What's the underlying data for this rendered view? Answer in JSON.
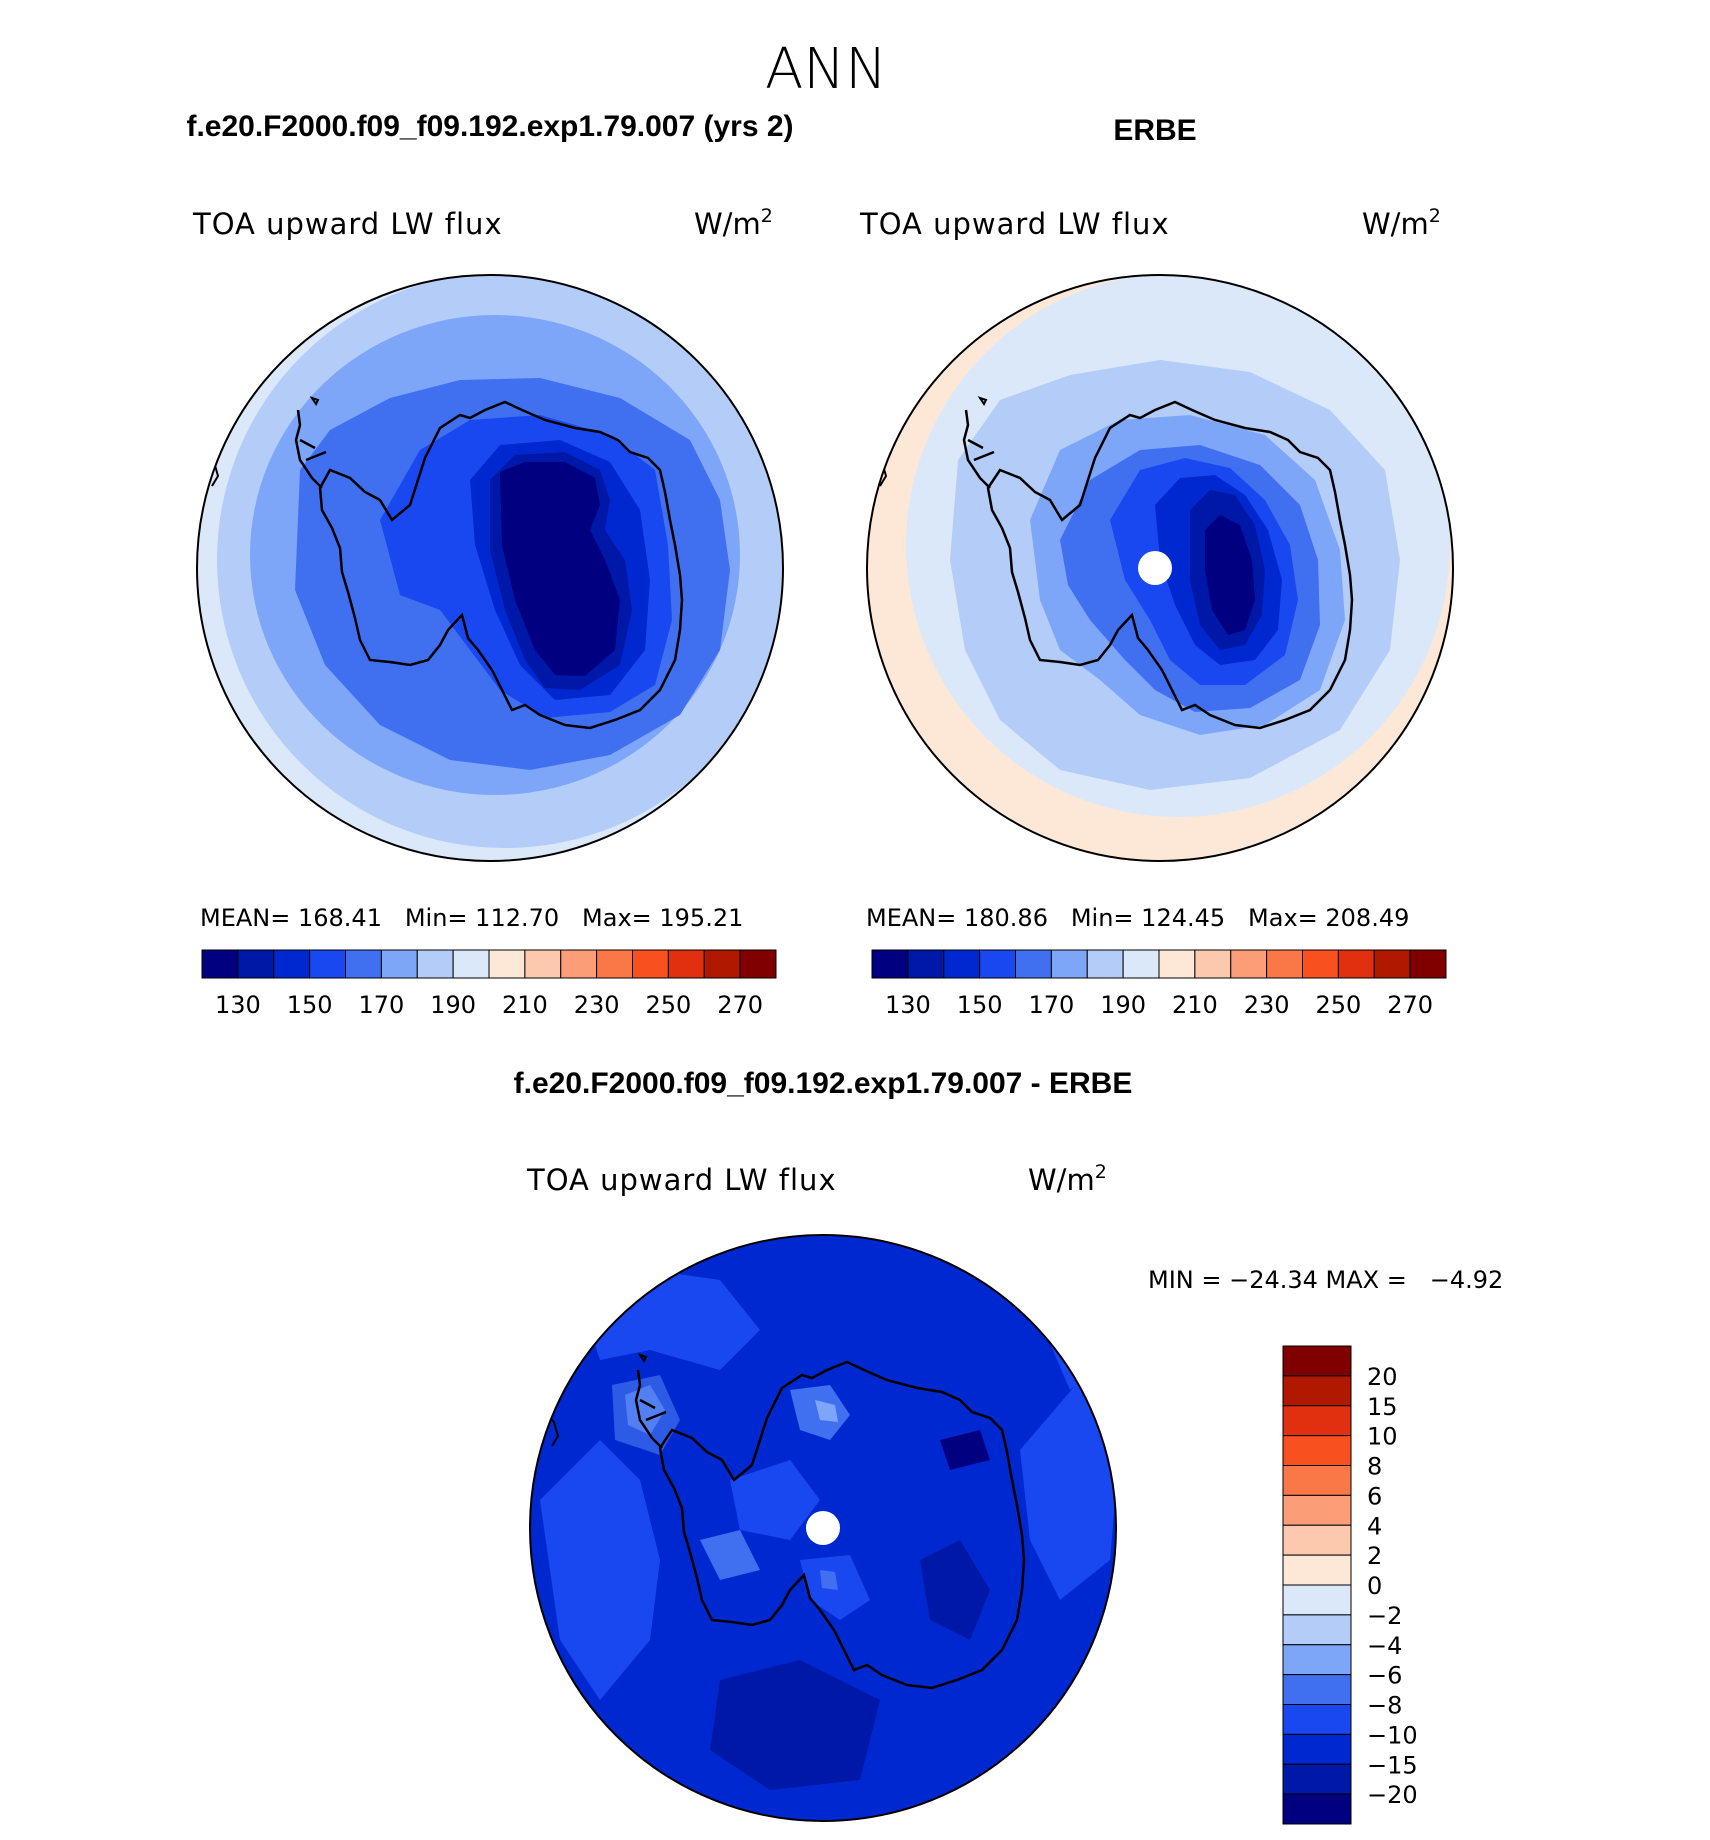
{
  "figure": {
    "title": "ANN",
    "panels": [
      {
        "id": "model",
        "header": "f.e20.F2000.f09_f09.192.exp1.79.007 (yrs 2)",
        "field_label": "TOA upward LW flux",
        "units": "W/m",
        "units_sup": "2",
        "stats_text": "MEAN= 168.41   Min= 112.70   Max= 195.21"
      },
      {
        "id": "obs",
        "header": "ERBE",
        "field_label": "TOA upward LW flux",
        "units": "W/m",
        "units_sup": "2",
        "stats_text": "MEAN= 180.86   Min= 124.45   Max= 208.49"
      },
      {
        "id": "diff",
        "header": "f.e20.F2000.f09_f09.192.exp1.79.007 - ERBE",
        "field_label": "TOA upward LW flux",
        "units": "W/m",
        "units_sup": "2",
        "stats_text": "MIN = −24.34 MAX =   −4.92"
      }
    ]
  },
  "colorbars": {
    "absolute": {
      "colors": [
        "#000080",
        "#0018a8",
        "#0028d0",
        "#1a48f0",
        "#4070f0",
        "#7ea6f8",
        "#b4ccf8",
        "#dae8fa",
        "#fde8d8",
        "#fcc8ae",
        "#fb9e78",
        "#fa7848",
        "#f95020",
        "#e03010",
        "#b01800",
        "#800000"
      ],
      "tick_labels": [
        "130",
        "150",
        "170",
        "190",
        "210",
        "230",
        "250",
        "270"
      ]
    },
    "difference": {
      "colors": [
        "#800000",
        "#b01800",
        "#e03010",
        "#f95020",
        "#fa7848",
        "#fb9e78",
        "#fcc8ae",
        "#fde8d8",
        "#dae8fa",
        "#b4ccf8",
        "#7ea6f8",
        "#4070f0",
        "#1a48f0",
        "#0028d0",
        "#0018a8",
        "#000080"
      ],
      "tick_labels": [
        "20",
        "15",
        "10",
        "8",
        "6",
        "4",
        "2",
        "0",
        "−2",
        "−4",
        "−6",
        "−8",
        "−10",
        "−15",
        "−20"
      ]
    }
  }
}
